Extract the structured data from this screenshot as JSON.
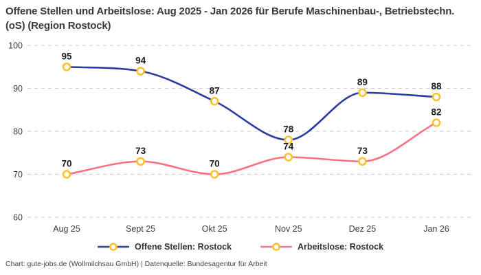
{
  "title": "Offene Stellen und Arbeitslose: Aug 2025 - Jan 2026 für Berufe Maschinenbau-, Betriebstechn.(oS) (Region Rostock)",
  "attribution": "Chart: gute-jobs.de (Wollmilchsau GmbH) | Datenquelle: Bundesagentur für Arbeit",
  "colors": {
    "background": "#ffffff",
    "title_text": "#3a3a3a",
    "grid": "#cbcbcb",
    "axis_text": "#3c3c3c",
    "value_label": "#1a1a1a",
    "legend_text": "#333333"
  },
  "chart_data": {
    "type": "line",
    "title": "Offene Stellen und Arbeitslose: Aug 2025 - Jan 2026 für Berufe Maschinenbau-, Betriebstechn.(oS) (Region Rostock)",
    "categories": [
      "Aug 25",
      "Sept 25",
      "Okt 25",
      "Nov 25",
      "Dez 25",
      "Jan 26"
    ],
    "series": [
      {
        "name": "Offene Stellen: Rostock",
        "color": "#2a3b9d",
        "values": [
          95,
          94,
          87,
          78,
          89,
          88
        ]
      },
      {
        "name": "Arbeitslose: Rostock",
        "color": "#fa7183",
        "values": [
          70,
          73,
          70,
          74,
          73,
          82
        ]
      }
    ],
    "ylim": [
      60,
      100
    ],
    "yticks": [
      60,
      70,
      80,
      90,
      100
    ],
    "grid": "horizontal-dashed",
    "legend_position": "bottom",
    "curve": "monotone",
    "marker": {
      "shape": "circle",
      "stroke": "#fcc12f",
      "fill": "#ffffff"
    },
    "point_labels_visible": true
  }
}
